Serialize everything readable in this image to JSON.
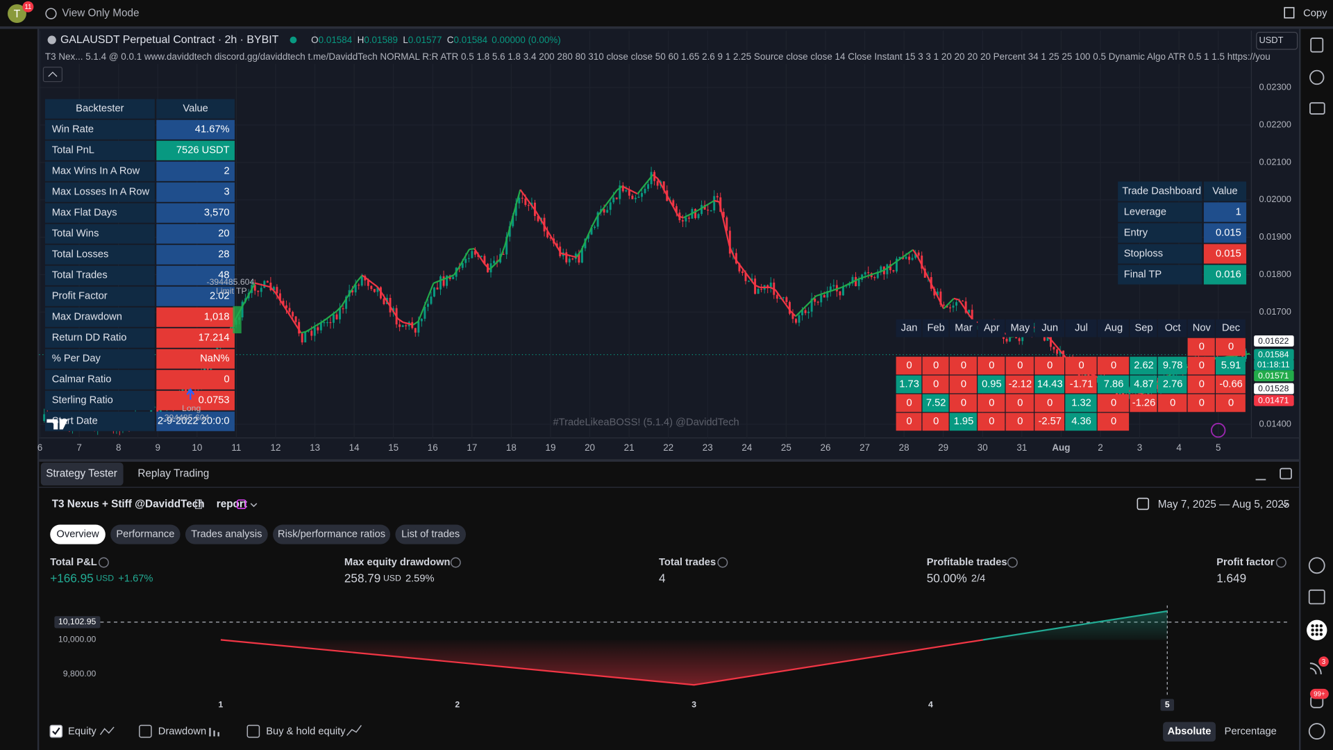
{
  "topbar": {
    "avatar": "T",
    "notifications": "11",
    "mode": "View Only Mode",
    "copy": "Copy"
  },
  "legend": {
    "symbol": "GALAUSDT Perpetual Contract · 2h · BYBIT",
    "open_label": "O",
    "open": "0.01584",
    "high_label": "H",
    "high": "0.01589",
    "low_label": "L",
    "low": "0.01577",
    "close_label": "C",
    "close": "0.01584",
    "change": "0.00000 (0.00%)",
    "currency": "USDT",
    "indicator": "T3 Nex...   5.1.4 @ 0.0.1 www.daviddtech discord.gg/daviddtech t.me/DaviddTech NORMAL R:R ATR 0.5 1.8 5.6 1.8 3.4 200 280 80 310 close close 50 60 1.65 2.6 9 1 2.25 Source close close 14 Close Instant 15 3 3 1 20 20 20 20 Percent 34 1 25 25 100 0.5 Dynamic Algo ATR 0.5 1 1.5 https://you"
  },
  "price_axis": [
    "0.02300",
    "0.02200",
    "0.02100",
    "0.02000",
    "0.01900",
    "0.01800",
    "0.01700",
    "0.01400"
  ],
  "price_tags": [
    {
      "text": "0.01622",
      "color": "#ffffff",
      "text_color": "#131722"
    },
    {
      "text": "0.01584",
      "color": "#089981",
      "text_color": "#ffffff"
    },
    {
      "text": "01:18:11",
      "color": "#089981",
      "text_color": "#ffffff"
    },
    {
      "text": "0.01571",
      "color": "#22ab4a",
      "text_color": "#ffffff"
    },
    {
      "text": "0.01528",
      "color": "#ffffff",
      "text_color": "#131722"
    },
    {
      "text": "0.01471",
      "color": "#f23645",
      "text_color": "#ffffff"
    }
  ],
  "date_axis": [
    "6",
    "7",
    "8",
    "9",
    "10",
    "11",
    "12",
    "13",
    "14",
    "15",
    "16",
    "17",
    "18",
    "19",
    "20",
    "21",
    "22",
    "23",
    "24",
    "25",
    "26",
    "27",
    "28",
    "29",
    "30",
    "31",
    "Aug",
    "2",
    "3",
    "4",
    "5"
  ],
  "watermark": "#TradeLikeaBOSS! (5.1.4) @DaviddTech",
  "trade_labels": {
    "price_top": "-394485.604",
    "limit": "Limit TP",
    "long": "Long",
    "price_bottom": "-394485.604"
  },
  "backtester": {
    "header": [
      "Backtester",
      "Value"
    ],
    "rows": [
      {
        "label": "Win Rate",
        "value": "41.67%",
        "color": "#1f4e8c"
      },
      {
        "label": "Total PnL",
        "value": "7526 USDT",
        "color": "#089981"
      },
      {
        "label": "Max Wins In A Row",
        "value": "2",
        "color": "#1f4e8c"
      },
      {
        "label": "Max Losses In A Row",
        "value": "3",
        "color": "#1f4e8c"
      },
      {
        "label": "Max Flat Days",
        "value": "3,570",
        "color": "#1f4e8c"
      },
      {
        "label": "Total Wins",
        "value": "20",
        "color": "#1f4e8c"
      },
      {
        "label": "Total Losses",
        "value": "28",
        "color": "#1f4e8c"
      },
      {
        "label": "Total Trades",
        "value": "48",
        "color": "#1f4e8c"
      },
      {
        "label": "Profit Factor",
        "value": "2.02",
        "color": "#1f4e8c"
      },
      {
        "label": "Max Drawdown",
        "value": "1,018",
        "color": "#e53935"
      },
      {
        "label": "Return DD Ratio",
        "value": "17.214",
        "color": "#e53935"
      },
      {
        "label": "% Per Day",
        "value": "NaN%",
        "color": "#e53935"
      },
      {
        "label": "Calmar Ratio",
        "value": "0",
        "color": "#e53935"
      },
      {
        "label": "Sterling Ratio",
        "value": "0.0753",
        "color": "#e53935"
      },
      {
        "label": "Start Date",
        "value": "2-9-2022 20:0:0",
        "color": "#1f4e8c"
      }
    ]
  },
  "trade_dashboard": {
    "header": [
      "Trade Dashboard",
      "Value"
    ],
    "rows": [
      {
        "label": "Leverage",
        "value": "1",
        "color": "#1f4e8c"
      },
      {
        "label": "Entry",
        "value": "0.015",
        "color": "#1f4e8c"
      },
      {
        "label": "Stoploss",
        "value": "0.015",
        "color": "#e53935"
      },
      {
        "label": "Final TP",
        "value": "0.016",
        "color": "#089981"
      }
    ]
  },
  "monthly": {
    "months": [
      "Jan",
      "Feb",
      "Mar",
      "Apr",
      "May",
      "Jun",
      "Jul",
      "Aug",
      "Sep",
      "Oct",
      "Nov",
      "Dec"
    ],
    "rows": [
      [
        null,
        null,
        null,
        null,
        null,
        null,
        null,
        null,
        null,
        null,
        "0",
        "0"
      ],
      [
        "0",
        "0",
        "0",
        "0",
        "0",
        "0",
        "0",
        "0",
        "2.62",
        "9.78",
        "0",
        "5.91"
      ],
      [
        "1.73",
        "0",
        "0",
        "0.95",
        "-2.12",
        "14.43",
        "-1.71",
        "7.86",
        "4.87",
        "2.76",
        "0",
        "-0.66"
      ],
      [
        "0",
        "7.52",
        "0",
        "0",
        "0",
        "0",
        "1.32",
        "0",
        "-1.26",
        "0",
        "0",
        "0"
      ],
      [
        "0",
        "0",
        "1.95",
        "0",
        "0",
        "-2.57",
        "4.36",
        "0",
        null,
        null,
        null,
        null
      ]
    ]
  },
  "tester": {
    "tabs": [
      "Strategy Tester",
      "Replay Trading"
    ],
    "strategy": "T3 Nexus + Stiff @DaviddTech",
    "report": "report",
    "date_range": "May 7, 2025 — Aug 5, 2025",
    "pills": [
      "Overview",
      "Performance",
      "Trades analysis",
      "Risk/performance ratios",
      "List of trades"
    ],
    "metrics": [
      {
        "label": "Total P&L",
        "value": "+166.95",
        "unit": "USD",
        "extra": "+1.67%"
      },
      {
        "label": "Max equity drawdown",
        "value": "258.79",
        "unit": "USD",
        "extra": "2.59%"
      },
      {
        "label": "Total trades",
        "value": "4"
      },
      {
        "label": "Profitable trades",
        "value": "50.00%",
        "extra": "2/4"
      },
      {
        "label": "Profit factor",
        "value": "1.649"
      }
    ],
    "toggles": [
      "Equity",
      "Drawdown",
      "Buy & hold equity"
    ],
    "modes": [
      "Absolute",
      "Percentage"
    ]
  },
  "equity_chart": {
    "type": "line",
    "x": [
      1,
      3,
      5
    ],
    "values": [
      10000,
      9738,
      10166.95
    ],
    "xlim": [
      0.29,
      5.51
    ],
    "ylim": [
      9676,
      10200
    ],
    "xticks": [
      1,
      2,
      3,
      4,
      5
    ],
    "yticks": [
      {
        "value": 10102.95,
        "label": "10,102.95"
      },
      {
        "value": 10000,
        "label": "10,000.00"
      },
      {
        "value": 9800,
        "label": "9,800.00"
      }
    ],
    "colors": {
      "below": "#f23645",
      "above": "#22ab94"
    }
  },
  "sidebar": {
    "badge_alerts": "3",
    "badge_notifications": "99+"
  }
}
